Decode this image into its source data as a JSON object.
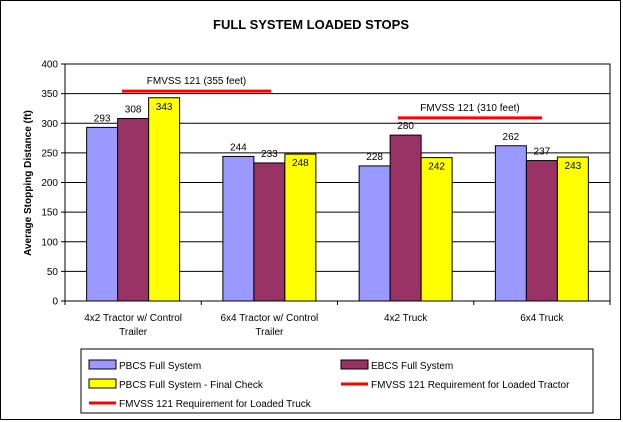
{
  "chart_data": {
    "type": "bar",
    "title": "FULL SYSTEM LOADED STOPS",
    "ylabel": "Average Stopping Distance (ft)",
    "xlabel": "",
    "ylim": [
      0,
      400
    ],
    "yticks": [
      "0",
      "50",
      "100",
      "150",
      "200",
      "250",
      "300",
      "350",
      "400"
    ],
    "grid": "horizontal",
    "legend_position": "bottom",
    "categories": [
      [
        "4x2 Tractor w/ Control",
        "Trailer"
      ],
      [
        "6x4 Tractor w/ Control",
        "Trailer"
      ],
      [
        "4x2 Truck"
      ],
      [
        "6x4 Truck"
      ]
    ],
    "series": [
      {
        "name": "PBCS Full System",
        "color": "#9999ff",
        "values": [
          293,
          244,
          228,
          262
        ]
      },
      {
        "name": "EBCS Full System",
        "color": "#993366",
        "values": [
          308,
          233,
          280,
          237
        ]
      },
      {
        "name": "PBCS Full System - Final Check",
        "color": "#ffff00",
        "values": [
          343,
          248,
          242,
          243
        ]
      }
    ],
    "reference_lines": [
      {
        "name": "FMVSS 121 Requirement for Loaded Tractor",
        "label": "FMVSS 121 (355 feet)",
        "value": 355,
        "color": "#ff0000",
        "categories": [
          0,
          1
        ]
      },
      {
        "name": "FMVSS 121 Requirement for Loaded Truck",
        "label": "FMVSS 121 (310 feet)",
        "value": 310,
        "color": "#ff0000",
        "categories": [
          2,
          3
        ]
      }
    ]
  }
}
